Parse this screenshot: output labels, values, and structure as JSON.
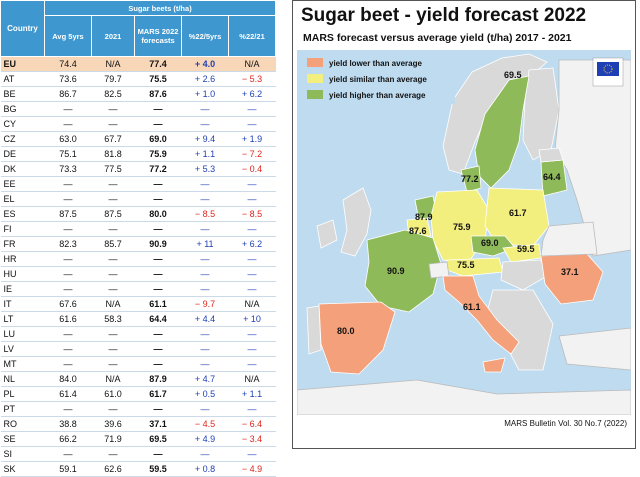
{
  "table": {
    "headers": {
      "country": "Country",
      "group": "Sugar beets (t/ha)",
      "avg5": "Avg 5yrs",
      "y2021": "2021",
      "mars": "MARS 2022 forecasts",
      "pct5": "%22/5yrs",
      "pct21": "%22/21"
    },
    "rows": [
      {
        "c": "EU",
        "avg": "74.4",
        "y21": "N/A",
        "mars": "77.4",
        "p5": "+ 4.0",
        "p21": "N/A"
      },
      {
        "c": "AT",
        "avg": "73.6",
        "y21": "79.7",
        "mars": "75.5",
        "p5": "+ 2.6",
        "p21": "− 5.3"
      },
      {
        "c": "BE",
        "avg": "86.7",
        "y21": "82.5",
        "mars": "87.6",
        "p5": "+ 1.0",
        "p21": "+ 6.2"
      },
      {
        "c": "BG",
        "avg": "—",
        "y21": "—",
        "mars": "—",
        "p5": "—",
        "p21": "—"
      },
      {
        "c": "CY",
        "avg": "—",
        "y21": "—",
        "mars": "—",
        "p5": "—",
        "p21": "—"
      },
      {
        "c": "CZ",
        "avg": "63.0",
        "y21": "67.7",
        "mars": "69.0",
        "p5": "+ 9.4",
        "p21": "+ 1.9"
      },
      {
        "c": "DE",
        "avg": "75.1",
        "y21": "81.8",
        "mars": "75.9",
        "p5": "+ 1.1",
        "p21": "− 7.2"
      },
      {
        "c": "DK",
        "avg": "73.3",
        "y21": "77.5",
        "mars": "77.2",
        "p5": "+ 5.3",
        "p21": "− 0.4"
      },
      {
        "c": "EE",
        "avg": "—",
        "y21": "—",
        "mars": "—",
        "p5": "—",
        "p21": "—"
      },
      {
        "c": "EL",
        "avg": "—",
        "y21": "—",
        "mars": "—",
        "p5": "—",
        "p21": "—"
      },
      {
        "c": "ES",
        "avg": "87.5",
        "y21": "87.5",
        "mars": "80.0",
        "p5": "− 8.5",
        "p21": "− 8.5"
      },
      {
        "c": "FI",
        "avg": "—",
        "y21": "—",
        "mars": "—",
        "p5": "—",
        "p21": "—"
      },
      {
        "c": "FR",
        "avg": "82.3",
        "y21": "85.7",
        "mars": "90.9",
        "p5": "+ 11",
        "p21": "+ 6.2"
      },
      {
        "c": "HR",
        "avg": "—",
        "y21": "—",
        "mars": "—",
        "p5": "—",
        "p21": "—"
      },
      {
        "c": "HU",
        "avg": "—",
        "y21": "—",
        "mars": "—",
        "p5": "—",
        "p21": "—"
      },
      {
        "c": "IE",
        "avg": "—",
        "y21": "—",
        "mars": "—",
        "p5": "—",
        "p21": "—"
      },
      {
        "c": "IT",
        "avg": "67.6",
        "y21": "N/A",
        "mars": "61.1",
        "p5": "− 9.7",
        "p21": "N/A"
      },
      {
        "c": "LT",
        "avg": "61.6",
        "y21": "58.3",
        "mars": "64.4",
        "p5": "+ 4.4",
        "p21": "+ 10"
      },
      {
        "c": "LU",
        "avg": "—",
        "y21": "—",
        "mars": "—",
        "p5": "—",
        "p21": "—"
      },
      {
        "c": "LV",
        "avg": "—",
        "y21": "—",
        "mars": "—",
        "p5": "—",
        "p21": "—"
      },
      {
        "c": "MT",
        "avg": "—",
        "y21": "—",
        "mars": "—",
        "p5": "—",
        "p21": "—"
      },
      {
        "c": "NL",
        "avg": "84.0",
        "y21": "N/A",
        "mars": "87.9",
        "p5": "+ 4.7",
        "p21": "N/A"
      },
      {
        "c": "PL",
        "avg": "61.4",
        "y21": "61.0",
        "mars": "61.7",
        "p5": "+ 0.5",
        "p21": "+ 1.1"
      },
      {
        "c": "PT",
        "avg": "—",
        "y21": "—",
        "mars": "—",
        "p5": "—",
        "p21": "—"
      },
      {
        "c": "RO",
        "avg": "38.8",
        "y21": "39.6",
        "mars": "37.1",
        "p5": "− 4.5",
        "p21": "− 6.4"
      },
      {
        "c": "SE",
        "avg": "66.2",
        "y21": "71.9",
        "mars": "69.5",
        "p5": "+ 4.9",
        "p21": "− 3.4"
      },
      {
        "c": "SI",
        "avg": "—",
        "y21": "—",
        "mars": "—",
        "p5": "—",
        "p21": "—"
      },
      {
        "c": "SK",
        "avg": "59.1",
        "y21": "62.6",
        "mars": "59.5",
        "p5": "+ 0.8",
        "p21": "− 4.9"
      }
    ]
  },
  "map": {
    "title": "Sugar beet - yield forecast 2022",
    "subtitle": "MARS forecast versus average yield (t/ha) 2017 - 2021",
    "footer": "MARS Bulletin Vol. 30 No.7 (2022)",
    "legend": [
      {
        "label": "yield lower than average",
        "color": "#f4a07a"
      },
      {
        "label": "yield similar than average",
        "color": "#f2ef7e"
      },
      {
        "label": "yield higher than average",
        "color": "#8fba5a"
      }
    ],
    "value_labels": [
      "69.5",
      "77.2",
      "64.4",
      "87.9",
      "87.6",
      "75.9",
      "61.7",
      "69.0",
      "59.5",
      "75.5",
      "90.9",
      "37.1",
      "61.1",
      "80.0"
    ]
  },
  "colors": {
    "header_blue": "#3f97cf",
    "eu_row": "#f8d7b8",
    "sea": "#bedbf0",
    "land_other": "#d9d9d9",
    "non_eu": "#f2f2f2",
    "positive": "#1f3fb5",
    "negative": "#e0251e"
  },
  "chart_data": {
    "type": "table",
    "title": "Sugar beets (t/ha)",
    "columns": [
      "Country",
      "Avg 5yrs",
      "2021",
      "MARS 2022 forecasts",
      "%22/5yrs",
      "%22/21"
    ],
    "map_values": [
      {
        "country": "SE",
        "value": 69.5,
        "class": "higher"
      },
      {
        "country": "DK",
        "value": 77.2,
        "class": "higher"
      },
      {
        "country": "LT",
        "value": 64.4,
        "class": "higher"
      },
      {
        "country": "NL",
        "value": 87.9,
        "class": "higher"
      },
      {
        "country": "BE",
        "value": 87.6,
        "class": "similar"
      },
      {
        "country": "DE",
        "value": 75.9,
        "class": "similar"
      },
      {
        "country": "PL",
        "value": 61.7,
        "class": "similar"
      },
      {
        "country": "CZ",
        "value": 69.0,
        "class": "higher"
      },
      {
        "country": "SK",
        "value": 59.5,
        "class": "similar"
      },
      {
        "country": "AT",
        "value": 75.5,
        "class": "similar"
      },
      {
        "country": "FR",
        "value": 90.9,
        "class": "higher"
      },
      {
        "country": "RO",
        "value": 37.1,
        "class": "lower"
      },
      {
        "country": "IT",
        "value": 61.1,
        "class": "lower"
      },
      {
        "country": "ES",
        "value": 80.0,
        "class": "lower"
      }
    ]
  }
}
